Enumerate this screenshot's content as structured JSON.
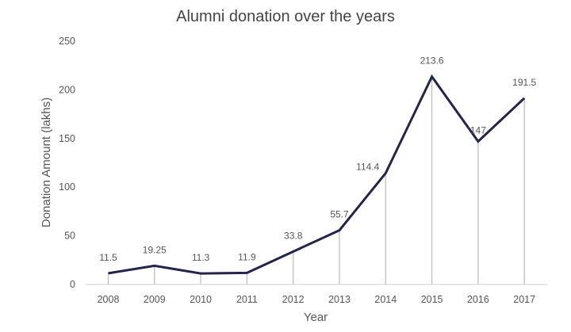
{
  "chart_data": {
    "type": "line",
    "title": "Alumni donation over the years",
    "xlabel": "Year",
    "ylabel": "Donation Amount (lakhs)",
    "categories": [
      "2008",
      "2009",
      "2010",
      "2011",
      "2012",
      "2013",
      "2014",
      "2015",
      "2016",
      "2017"
    ],
    "values": [
      11.5,
      19.25,
      11.3,
      11.9,
      33.8,
      55.7,
      114.4,
      213.6,
      147,
      191.5
    ],
    "data_labels": [
      "11.5",
      "19.25",
      "11.3",
      "11.9",
      "33.8",
      "55.7",
      "114.4",
      "213.6",
      "147",
      "191.5"
    ],
    "ylim": [
      0,
      250
    ],
    "yticks": [
      "0",
      "50",
      "100",
      "150",
      "200",
      "250"
    ],
    "grid": false,
    "drop_lines": true,
    "colors": {
      "line": "#23244a",
      "drop_line": "#bbbbbb",
      "axis": "#cccccc"
    }
  }
}
